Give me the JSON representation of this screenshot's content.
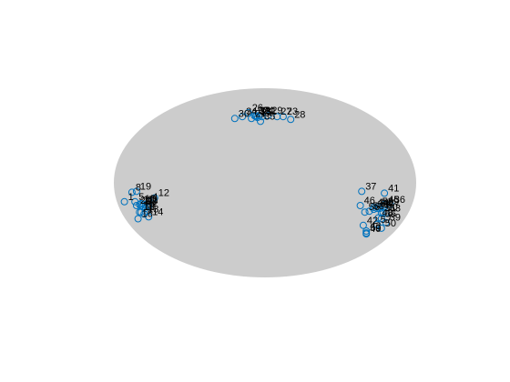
{
  "chart_data": {
    "type": "scatter",
    "title": "",
    "xlabel": "",
    "ylabel": "",
    "axes_visible": false,
    "grid": false,
    "background_shape": "ellipse",
    "colors": {
      "background_shape": "#cccccc",
      "marker": "#0072BD",
      "label": "#000000"
    },
    "marker": "open-circle",
    "xlim": [
      -1,
      1
    ],
    "ylim": [
      -1,
      1
    ],
    "points": [
      {
        "label": "1",
        "x": -0.93,
        "y": -0.2
      },
      {
        "label": "2",
        "x": -0.82,
        "y": -0.24
      },
      {
        "label": "3",
        "x": -0.81,
        "y": -0.25
      },
      {
        "label": "4",
        "x": -0.77,
        "y": -0.2
      },
      {
        "label": "5",
        "x": -0.86,
        "y": -0.2
      },
      {
        "label": "6",
        "x": -0.79,
        "y": -0.27
      },
      {
        "label": "7",
        "x": -0.78,
        "y": -0.3
      },
      {
        "label": "8",
        "x": -0.88,
        "y": -0.1
      },
      {
        "label": "9",
        "x": -0.77,
        "y": -0.25
      },
      {
        "label": "10",
        "x": -0.82,
        "y": -0.31
      },
      {
        "label": "11",
        "x": -0.8,
        "y": -0.23
      },
      {
        "label": "12",
        "x": -0.73,
        "y": -0.16
      },
      {
        "label": "13",
        "x": -0.8,
        "y": -0.33
      },
      {
        "label": "14",
        "x": -0.77,
        "y": -0.36
      },
      {
        "label": "15",
        "x": -0.82,
        "y": -0.22
      },
      {
        "label": "16",
        "x": -0.84,
        "y": -0.38
      },
      {
        "label": "17",
        "x": -0.83,
        "y": -0.23
      },
      {
        "label": "18",
        "x": -0.83,
        "y": -0.31
      },
      {
        "label": "19",
        "x": -0.85,
        "y": -0.09
      },
      {
        "label": "20",
        "x": -0.85,
        "y": -0.24
      },
      {
        "label": "21",
        "x": -0.09,
        "y": 0.68
      },
      {
        "label": "22",
        "x": -0.06,
        "y": 0.71
      },
      {
        "label": "23",
        "x": 0.12,
        "y": 0.7
      },
      {
        "label": "24",
        "x": -0.04,
        "y": 0.71
      },
      {
        "label": "25",
        "x": -0.05,
        "y": 0.69
      },
      {
        "label": "26",
        "x": -0.11,
        "y": 0.74
      },
      {
        "label": "27",
        "x": 0.08,
        "y": 0.7
      },
      {
        "label": "28",
        "x": 0.17,
        "y": 0.67
      },
      {
        "label": "29",
        "x": 0.02,
        "y": 0.71
      },
      {
        "label": "30",
        "x": -0.2,
        "y": 0.68
      },
      {
        "label": "31",
        "x": -0.02,
        "y": 0.7
      },
      {
        "label": "32",
        "x": -0.07,
        "y": 0.71
      },
      {
        "label": "33",
        "x": -0.06,
        "y": 0.7
      },
      {
        "label": "34",
        "x": -0.15,
        "y": 0.7
      },
      {
        "label": "35",
        "x": -0.03,
        "y": 0.65
      },
      {
        "label": "36",
        "x": 0.83,
        "y": -0.23
      },
      {
        "label": "37",
        "x": 0.64,
        "y": -0.09
      },
      {
        "label": "38",
        "x": 0.72,
        "y": -0.28
      },
      {
        "label": "39",
        "x": 0.8,
        "y": -0.42
      },
      {
        "label": "40",
        "x": 0.67,
        "y": -0.54
      },
      {
        "label": "41",
        "x": 0.79,
        "y": -0.11
      },
      {
        "label": "42",
        "x": 0.65,
        "y": -0.45
      },
      {
        "label": "43",
        "x": 0.67,
        "y": -0.51
      },
      {
        "label": "44",
        "x": 0.72,
        "y": -0.26
      },
      {
        "label": "45",
        "x": 0.79,
        "y": -0.23
      },
      {
        "label": "46",
        "x": 0.63,
        "y": -0.24
      },
      {
        "label": "47",
        "x": 0.76,
        "y": -0.27
      },
      {
        "label": "48",
        "x": 0.75,
        "y": -0.37
      },
      {
        "label": "49",
        "x": 0.79,
        "y": -0.25
      },
      {
        "label": "50",
        "x": 0.77,
        "y": -0.48
      },
      {
        "label": "51",
        "x": 0.77,
        "y": -0.32
      },
      {
        "label": "52",
        "x": 0.75,
        "y": -0.25
      },
      {
        "label": "53",
        "x": 0.8,
        "y": -0.32
      },
      {
        "label": "54",
        "x": 0.74,
        "y": -0.27
      },
      {
        "label": "55",
        "x": 0.77,
        "y": -0.38
      },
      {
        "label": "56",
        "x": 0.66,
        "y": -0.31
      },
      {
        "label": "57",
        "x": 0.74,
        "y": -0.44
      },
      {
        "label": "58",
        "x": 0.69,
        "y": -0.3
      },
      {
        "label": "59",
        "x": 0.67,
        "y": -0.53
      },
      {
        "label": "60",
        "x": 0.78,
        "y": -0.31
      }
    ]
  }
}
